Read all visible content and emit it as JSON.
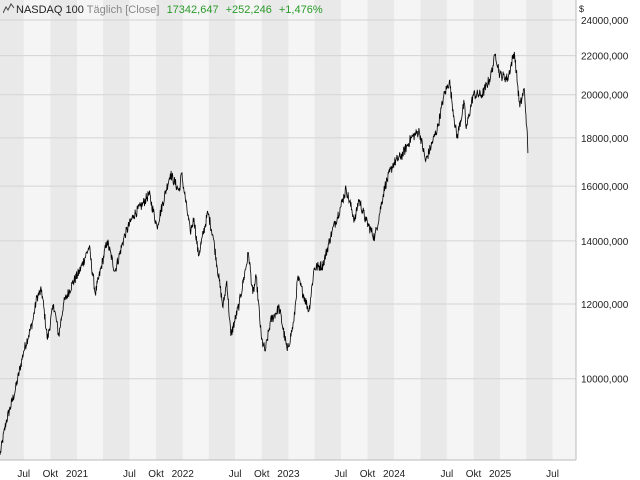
{
  "header": {
    "name": "NASDAQ 100",
    "interval": "Täglich [Close]",
    "last": "17342,647",
    "change": "+252,246",
    "change_pct": "+1,476%"
  },
  "colors": {
    "up": "#2a9a2a",
    "line": "#000000",
    "band_dark": "#e9e9e9",
    "band_light": "#f5f5f5",
    "grid": "#d4d4d4"
  },
  "chart_data": {
    "type": "line",
    "scale": "log",
    "currency_label": "$",
    "grid": true,
    "x_range": [
      "2020-04-10",
      "2025-09-20"
    ],
    "ylim": [
      8200,
      25200
    ],
    "yticks": [
      {
        "value": 10000,
        "label": "10000,000"
      },
      {
        "value": 12000,
        "label": "12000,000"
      },
      {
        "value": 14000,
        "label": "14000,000"
      },
      {
        "value": 16000,
        "label": "16000,000"
      },
      {
        "value": 18000,
        "label": "18000,000"
      },
      {
        "value": 20000,
        "label": "20000,000"
      },
      {
        "value": 22000,
        "label": "22000,000"
      },
      {
        "value": 24000,
        "label": "24000,000"
      }
    ],
    "xticks": [
      {
        "date": "2020-07-01",
        "label": "Jul"
      },
      {
        "date": "2020-10-01",
        "label": "Okt"
      },
      {
        "date": "2021-01-01",
        "label": "2021"
      },
      {
        "date": "2021-07-01",
        "label": "Jul"
      },
      {
        "date": "2021-10-01",
        "label": "Okt"
      },
      {
        "date": "2022-01-01",
        "label": "2022"
      },
      {
        "date": "2022-07-01",
        "label": "Jul"
      },
      {
        "date": "2022-10-01",
        "label": "Okt"
      },
      {
        "date": "2023-01-01",
        "label": "2023"
      },
      {
        "date": "2023-07-01",
        "label": "Jul"
      },
      {
        "date": "2023-10-01",
        "label": "Okt"
      },
      {
        "date": "2024-01-01",
        "label": "2024"
      },
      {
        "date": "2024-07-01",
        "label": "Jul"
      },
      {
        "date": "2024-10-01",
        "label": "Okt"
      },
      {
        "date": "2025-01-01",
        "label": "2025"
      },
      {
        "date": "2025-07-01",
        "label": "Jul"
      }
    ],
    "series": [
      {
        "points": [
          [
            "2020-04-10",
            8300
          ],
          [
            "2020-05-01",
            9000
          ],
          [
            "2020-06-01",
            9700
          ],
          [
            "2020-07-01",
            10700
          ],
          [
            "2020-08-01",
            11500
          ],
          [
            "2020-08-15",
            12200
          ],
          [
            "2020-09-01",
            12400
          ],
          [
            "2020-09-21",
            11000
          ],
          [
            "2020-10-12",
            12000
          ],
          [
            "2020-10-30",
            11100
          ],
          [
            "2020-11-15",
            12000
          ],
          [
            "2020-12-15",
            12600
          ],
          [
            "2021-01-10",
            13000
          ],
          [
            "2021-02-12",
            13800
          ],
          [
            "2021-03-05",
            12300
          ],
          [
            "2021-04-15",
            14000
          ],
          [
            "2021-05-12",
            13000
          ],
          [
            "2021-06-15",
            14200
          ],
          [
            "2021-07-15",
            14900
          ],
          [
            "2021-08-15",
            15300
          ],
          [
            "2021-09-07",
            15700
          ],
          [
            "2021-10-04",
            14500
          ],
          [
            "2021-11-19",
            16500
          ],
          [
            "2021-12-20",
            15800
          ],
          [
            "2021-12-28",
            16500
          ],
          [
            "2022-01-27",
            14300
          ],
          [
            "2022-02-09",
            14800
          ],
          [
            "2022-02-24",
            13500
          ],
          [
            "2022-03-29",
            15000
          ],
          [
            "2022-04-15",
            14200
          ],
          [
            "2022-05-20",
            11900
          ],
          [
            "2022-06-02",
            12700
          ],
          [
            "2022-06-16",
            11100
          ],
          [
            "2022-07-15",
            12000
          ],
          [
            "2022-08-16",
            13600
          ],
          [
            "2022-08-31",
            12300
          ],
          [
            "2022-09-12",
            12800
          ],
          [
            "2022-09-30",
            11000
          ],
          [
            "2022-10-13",
            10700
          ],
          [
            "2022-10-31",
            11500
          ],
          [
            "2022-11-30",
            11900
          ],
          [
            "2022-12-28",
            10700
          ],
          [
            "2023-01-20",
            11500
          ],
          [
            "2023-02-02",
            12800
          ],
          [
            "2023-03-13",
            11800
          ],
          [
            "2023-03-31",
            13100
          ],
          [
            "2023-04-30",
            13200
          ],
          [
            "2023-05-31",
            14300
          ],
          [
            "2023-06-30",
            15200
          ],
          [
            "2023-07-19",
            15900
          ],
          [
            "2023-08-18",
            14700
          ],
          [
            "2023-09-01",
            15500
          ],
          [
            "2023-09-26",
            14700
          ],
          [
            "2023-10-26",
            14100
          ],
          [
            "2023-11-30",
            16000
          ],
          [
            "2023-12-29",
            16900
          ],
          [
            "2024-01-31",
            17300
          ],
          [
            "2024-02-29",
            18000
          ],
          [
            "2024-03-28",
            18300
          ],
          [
            "2024-04-19",
            17000
          ],
          [
            "2024-05-31",
            18500
          ],
          [
            "2024-06-20",
            19900
          ],
          [
            "2024-07-10",
            20700
          ],
          [
            "2024-07-25",
            19000
          ],
          [
            "2024-08-05",
            18000
          ],
          [
            "2024-08-30",
            19600
          ],
          [
            "2024-09-06",
            18400
          ],
          [
            "2024-09-30",
            20000
          ],
          [
            "2024-10-31",
            20000
          ],
          [
            "2024-11-29",
            20900
          ],
          [
            "2024-12-16",
            22100
          ],
          [
            "2024-12-31",
            21000
          ],
          [
            "2025-01-27",
            20800
          ],
          [
            "2025-02-19",
            22200
          ],
          [
            "2025-03-10",
            19400
          ],
          [
            "2025-03-25",
            20300
          ],
          [
            "2025-04-03",
            18500
          ],
          [
            "2025-04-07",
            17342.647
          ]
        ]
      }
    ]
  }
}
